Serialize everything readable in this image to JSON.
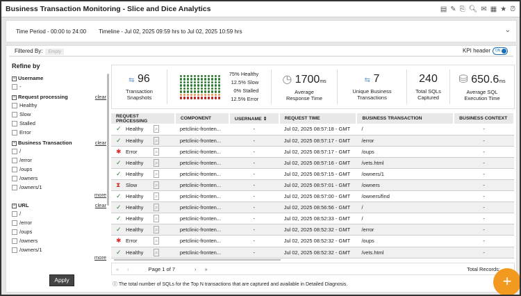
{
  "title": "Business Transaction Monitoring - Slice and Dice Analytics",
  "toolbar_icons": [
    "report-icon",
    "edit-icon",
    "export-icon",
    "search-icon",
    "mail-icon",
    "excel-icon",
    "star-icon",
    "alarm-icon"
  ],
  "time_period": "Time Period - 00:00 to 24:00",
  "timeline": "Timeline - Jul 02, 2025 09:59 hrs to Jul 02, 2025 10:59 hrs",
  "filtered_by": "Filtered By:",
  "filter_value": "Empty",
  "kpi_header": "KPI header",
  "kpi_toggle": "ON",
  "sidebar": {
    "title": "Refine by",
    "clear": "clear",
    "more": "more",
    "apply": "Apply",
    "groups": [
      {
        "label": "Username",
        "options": [
          "-"
        ]
      },
      {
        "label": "Request processing",
        "options": [
          "Healthy",
          "Slow",
          "Stalled",
          "Error"
        ]
      },
      {
        "label": "Business Transaction",
        "options": [
          "/",
          "/error",
          "/oups",
          "/owners",
          "/owners/1"
        ]
      },
      {
        "label": "URL",
        "options": [
          "/",
          "/error",
          "/oups",
          "/owners",
          "/owners/1"
        ]
      }
    ]
  },
  "kpi": {
    "snapshots": "96",
    "snapshots_label": "Transaction Snapshots",
    "dist": [
      {
        "pct": "75%",
        "label": "Healthy",
        "color": "#2e7d32"
      },
      {
        "pct": "12.5%",
        "label": "Slow",
        "color": "#e8944a"
      },
      {
        "pct": "0%",
        "label": "Stalled",
        "color": "#888888"
      },
      {
        "pct": "12.5%",
        "label": "Error",
        "color": "#b71c1c"
      }
    ],
    "avg_rt": "1700",
    "avg_rt_unit": "ms",
    "avg_rt_label": "Average Response Time",
    "unique": "7",
    "unique_label": "Unique Business Transactions",
    "sqls": "240",
    "sqls_label": "Total SQLs Captured",
    "sql_time": "650.6",
    "sql_time_unit": "ms",
    "sql_time_label": "Average SQL Execution Time"
  },
  "table": {
    "headers": [
      "REQUEST PROCESSING",
      "COMPONENT",
      "USERNAME",
      "REQUEST TIME",
      "BUSINESS TRANSACTION",
      "BUSINESS CONTEXT"
    ],
    "rows": [
      [
        "Healthy",
        "petclinic-fronten...",
        "-",
        "Jul 02, 2025 08:57:18 - GMT",
        "/",
        "-"
      ],
      [
        "Healthy",
        "petclinic-fronten...",
        "-",
        "Jul 02, 2025 08:57:17 - GMT",
        "/error",
        "-"
      ],
      [
        "Error",
        "petclinic-fronten...",
        "-",
        "Jul 02, 2025 08:57:17 - GMT",
        "/oups",
        "-"
      ],
      [
        "Healthy",
        "petclinic-fronten...",
        "-",
        "Jul 02, 2025 08:57:16 - GMT",
        "/vets.html",
        "-"
      ],
      [
        "Healthy",
        "petclinic-fronten...",
        "-",
        "Jul 02, 2025 08:57:15 - GMT",
        "/owners/1",
        "-"
      ],
      [
        "Slow",
        "petclinic-fronten...",
        "-",
        "Jul 02, 2025 08:57:01 - GMT",
        "/owners",
        "-"
      ],
      [
        "Healthy",
        "petclinic-fronten...",
        "-",
        "Jul 02, 2025 08:57:00 - GMT",
        "/owners/find",
        "-"
      ],
      [
        "Healthy",
        "petclinic-fronten...",
        "-",
        "Jul 02, 2025 08:56:56 - GMT",
        "/",
        "-"
      ],
      [
        "Healthy",
        "petclinic-fronten...",
        "-",
        "Jul 02, 2025 08:52:33 - GMT",
        "/",
        "-"
      ],
      [
        "Healthy",
        "petclinic-fronten...",
        "-",
        "Jul 02, 2025 08:52:32 - GMT",
        "/error",
        "-"
      ],
      [
        "Error",
        "petclinic-fronten...",
        "-",
        "Jul 02, 2025 08:52:32 - GMT",
        "/oups",
        "-"
      ],
      [
        "Healthy",
        "petclinic-fronten...",
        "-",
        "Jul 02, 2025 08:52:32 - GMT",
        "/vets.html",
        "-"
      ]
    ]
  },
  "pager": {
    "page": "Page 1 of 7",
    "total": "Total Records:"
  },
  "note": "The total number of SQLs for the Top N transactions that are captured and available in Detailed Diagnosis."
}
